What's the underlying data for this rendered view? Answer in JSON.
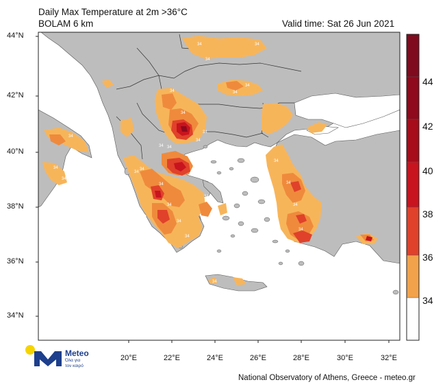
{
  "header": {
    "title_line1": "Daily Max Temperature at 2m >36°C",
    "title_line2": "BOLAM 6 km",
    "valid_time": "Valid time: Sat 26 Jun 2021"
  },
  "map": {
    "latitude_labels": [
      "44°N",
      "42°N",
      "40°N",
      "38°N",
      "36°N",
      "34°N"
    ],
    "longitude_labels": [
      "20°E",
      "22°E",
      "24°E",
      "26°E",
      "28°E",
      "30°E",
      "32°E"
    ],
    "contour_label": "34",
    "colors": {
      "sea": "#ffffff",
      "land": "#bdbdbd",
      "border": "#444444",
      "light_orange": "#f7b55a",
      "orange": "#ef8a3c",
      "red_orange": "#e0412a",
      "red": "#c8141e",
      "dark_red": "#8e0a1c"
    }
  },
  "colorbar": {
    "labels": [
      "44",
      "42",
      "40",
      "38",
      "36",
      "34"
    ],
    "colors": [
      "#7f0b1e",
      "#8e0a1c",
      "#a60c1a",
      "#c8141e",
      "#e0412a",
      "#ef8a3c",
      "#f2a24a",
      "#f7b55a",
      "#ffffff"
    ]
  },
  "logo": {
    "brand": "Meteo",
    "tagline_line1": "Όλα για",
    "tagline_line2": "τον καιρό"
  },
  "footer": {
    "credit": "National Observatory of Athens, Greece - meteo.gr"
  }
}
